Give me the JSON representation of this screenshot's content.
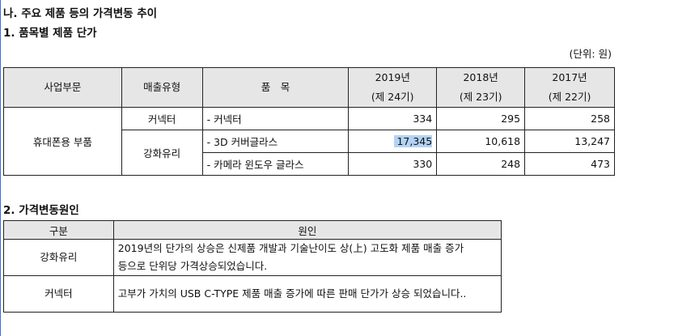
{
  "section_title": "나. 주요 제품 등의 가격변동 추이",
  "sub1_title": "1. 품목별 제품 단가",
  "unit_label": "(단위: 원)",
  "price_table": {
    "headers": {
      "division": "사업부문",
      "sales_type": "매출유형",
      "item": "품　목",
      "y2019": "2019년",
      "y2019_period": "(제 24기)",
      "y2018": "2018년",
      "y2018_period": "(제 23기)",
      "y2017": "2017년",
      "y2017_period": "(제 22기)"
    },
    "division": "휴대폰용 부품",
    "rows": [
      {
        "sales_type": "커넥터",
        "item": "- 커넥터",
        "v2019": "334",
        "v2018": "295",
        "v2017": "258"
      },
      {
        "sales_type": "강화유리",
        "item": "- 3D 커버글라스",
        "v2019": "17,345",
        "v2018": "10,618",
        "v2017": "13,247"
      },
      {
        "item": "- 카메라 윈도우 글라스",
        "v2019": "330",
        "v2018": "248",
        "v2017": "473"
      }
    ]
  },
  "sub2_title": "2. 가격변동원인",
  "cause_table": {
    "headers": {
      "category": "구분",
      "cause": "원인"
    },
    "rows": [
      {
        "category": "강화유리",
        "line1": "2019년의 단가의 상승은 신제품 개발과 기술난이도 상(上) 고도화 제품 매출 증가",
        "line2": "등으로 단위당 가격상승되었습니다."
      },
      {
        "category": "커넥터",
        "line1": "고부가 가치의 USB C-TYPE 제품 매출 증가에 따른 판매 단가가 상승 되었습니다.."
      }
    ]
  }
}
